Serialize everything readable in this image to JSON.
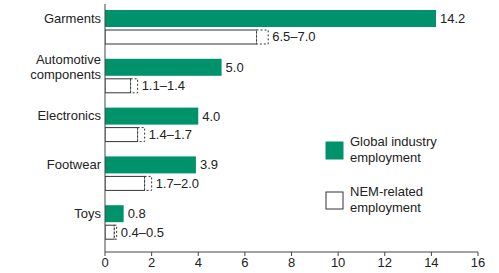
{
  "chart_data": {
    "type": "bar",
    "orientation": "horizontal",
    "categories": [
      "Garments",
      "Automotive components",
      "Electronics",
      "Footwear",
      "Toys"
    ],
    "series": [
      {
        "name": "Global industry employment",
        "color": "#00936b",
        "values": [
          14.2,
          5.0,
          4.0,
          3.9,
          0.8
        ],
        "value_labels": [
          "14.2",
          "5.0",
          "4.0",
          "3.9",
          "0.8"
        ]
      },
      {
        "name": "NEM-related employment",
        "color": "#ffffff",
        "values": [
          6.5,
          1.1,
          1.4,
          1.7,
          0.4
        ],
        "high": [
          7.0,
          1.4,
          1.7,
          2.0,
          0.5
        ],
        "value_labels": [
          "6.5–7.0",
          "1.1–1.4",
          "1.4–1.7",
          "1.7–2.0",
          "0.4–0.5"
        ]
      }
    ],
    "xlim": [
      0,
      16
    ],
    "xticks": [
      0,
      2,
      4,
      6,
      8,
      10,
      12,
      14,
      16
    ],
    "data_labels": true,
    "grid": false,
    "legend": "right"
  }
}
